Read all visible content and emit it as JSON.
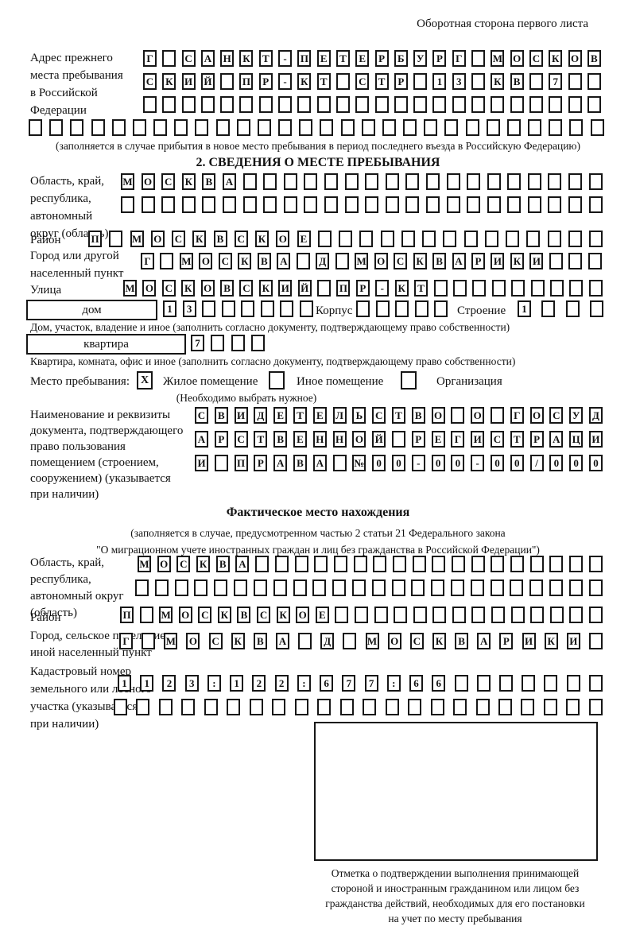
{
  "page": {
    "header_note": "Оборотная сторона первого листа"
  },
  "prev_address": {
    "label_lines": [
      "Адрес прежнего",
      "места пребывания",
      "в Российской",
      "Федерации"
    ],
    "rows": [
      {
        "cells": "Г САНКТ-ПЕТЕРБУРГ МОСКОВ",
        "len": 24
      },
      {
        "cells": "СКИЙ ПР-КТ СТР 13 КВ 7",
        "len": 24
      },
      {
        "cells": "",
        "len": 24
      },
      {
        "cells": "",
        "len": 28
      }
    ],
    "note": "(заполняется в случае прибытия в новое место пребывания в период последнего въезда в Российскую Федерацию)"
  },
  "section2": {
    "title": "2. СВЕДЕНИЯ О МЕСТЕ ПРЕБЫВАНИЯ",
    "oblast": {
      "label_lines": [
        "Область, край,",
        "республика,",
        "автономный",
        "округ (область)"
      ],
      "rows": [
        {
          "cells": "МОСКВА",
          "len": 24
        },
        {
          "cells": "",
          "len": 24
        }
      ]
    },
    "raion": {
      "label": "Район",
      "row": {
        "cells": "П МОСКВСКОЕ",
        "len": 25
      }
    },
    "gorod": {
      "label_lines": [
        "Город или другой",
        "населенный пункт"
      ],
      "row": {
        "cells": "Г МОСКВА Д МОСКВАРИКИ",
        "len": 24
      }
    },
    "ulitsa": {
      "label": "Улица",
      "row": {
        "cells": "МОСКОВСКИЙ ПР-КТ",
        "len": 25
      }
    },
    "dom": {
      "box_label": "дом",
      "row": {
        "cells": "13",
        "len": 8
      },
      "korpus_label": "Корпус",
      "korpus_row": {
        "cells": "",
        "len": 5
      },
      "stroenie_label": "Строение",
      "stroenie_row": {
        "cells": "1",
        "len": 4
      },
      "note": "Дом, участок, владение и иное (заполнить согласно документу, подтверждающему право собственности)"
    },
    "kvartira": {
      "box_label": "квартира",
      "row": {
        "cells": "7",
        "len": 4
      },
      "note": "Квартира, комната, офис и иное (заполнить согласно документу, подтверждающему право собственности)"
    },
    "mesto": {
      "label": "Место пребывания:",
      "options": [
        {
          "label": "Жилое помещение",
          "checked": "X"
        },
        {
          "label": "Иное помещение",
          "checked": ""
        },
        {
          "label": "Организация",
          "checked": ""
        }
      ],
      "note": "(Необходимо выбрать нужное)"
    },
    "doc": {
      "label_lines": [
        "Наименование и реквизиты",
        "документа, подтверждающего",
        "право пользования",
        "помещением (строением,",
        "сооружением) (указывается",
        "при наличии)"
      ],
      "rows": [
        {
          "cells": "СВИДЕТЕЛЬСТВО О ГОСУД",
          "len": 21
        },
        {
          "cells": "АРСТВЕННОЙ РЕГИСТРАЦИ",
          "len": 21
        },
        {
          "cells": "И ПРАВА №00-00-00/000",
          "len": 21
        }
      ]
    }
  },
  "fact": {
    "title": "Фактическое место нахождения",
    "note_lines": [
      "(заполняется в случае, предусмотренном частью 2 статьи 21 Федерального закона",
      "\"О миграционном учете иностранных граждан и лиц без гражданства в Российской Федерации\")"
    ],
    "oblast": {
      "label_lines": [
        "Область, край,",
        "республика,",
        "автономный округ",
        "(область)"
      ],
      "rows": [
        {
          "cells": "МОСКВА",
          "len": 24
        },
        {
          "cells": "",
          "len": 24
        }
      ]
    },
    "raion": {
      "label": "Район",
      "row": {
        "cells": "П МОСКВСКОЕ",
        "len": 25
      }
    },
    "gorod": {
      "label_lines": [
        "Город, сельское поселение,",
        "иной населенный пункт"
      ],
      "row": {
        "cells": "Г МОСКВА Д МОСКВАРИКИ",
        "len": 22
      }
    },
    "kadastr": {
      "label_lines": [
        "Кадастровый номер",
        "земельного или лесного",
        "участка (указывается",
        "при наличии)"
      ],
      "rows": [
        {
          "cells": "1123:122:677:66",
          "len": 22
        },
        {
          "cells": "",
          "len": 22
        }
      ]
    },
    "stamp_note_lines": [
      "Отметка о подтверждении выполнения принимающей",
      "стороной и иностранным гражданином или лицом без",
      "гражданства действий, необходимых для его постановки",
      "на учет по месту пребывания"
    ]
  }
}
